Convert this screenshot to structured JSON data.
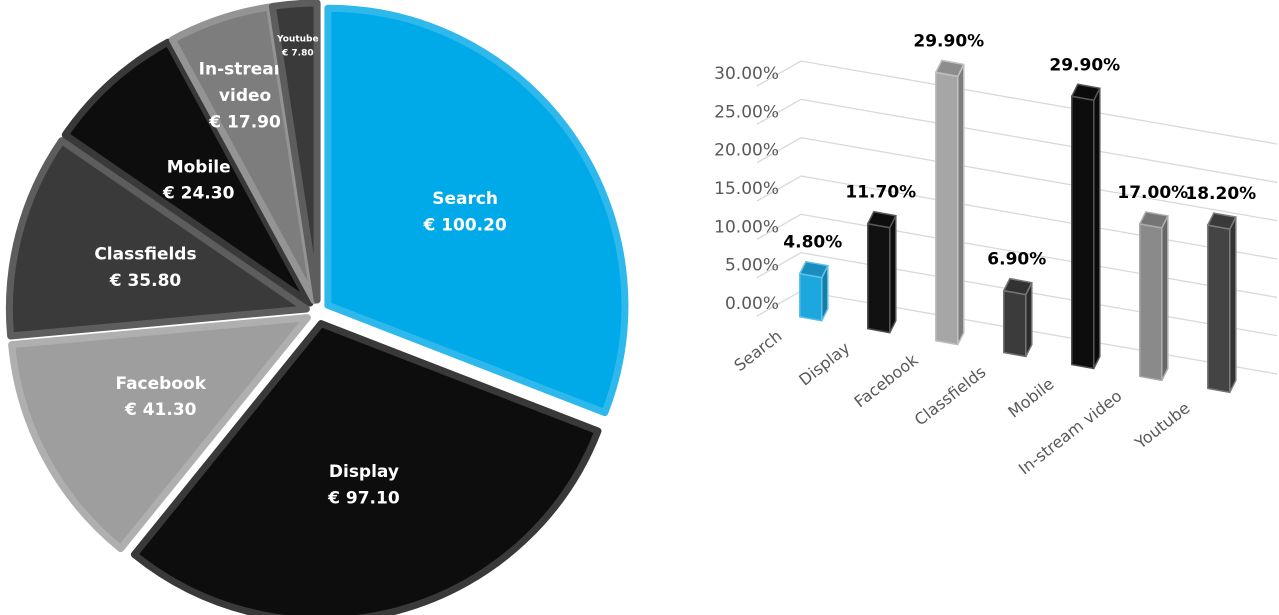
{
  "chart_data": [
    {
      "type": "pie",
      "slices": [
        {
          "name": "Search",
          "value": 100.2,
          "value_label": "€ 100.20",
          "color": "#00a9e8"
        },
        {
          "name": "Display",
          "value": 97.1,
          "value_label": "€ 97.10",
          "color": "#0d0d0d"
        },
        {
          "name": "Facebook",
          "value": 41.3,
          "value_label": "€ 41.30",
          "color": "#9e9e9e"
        },
        {
          "name": "Classfields",
          "value": 35.8,
          "value_label": "€ 35.80",
          "color": "#3a3a3a"
        },
        {
          "name": "Mobile",
          "value": 24.3,
          "value_label": "€ 24.30",
          "color": "#0d0d0d"
        },
        {
          "name": "In-stream video",
          "value": 17.9,
          "value_label": "€ 17.90",
          "color": "#7d7d7d"
        },
        {
          "name": "Youtube",
          "value": 7.8,
          "value_label": "€ 7.80",
          "color": "#3a3a3a"
        }
      ],
      "exploded": true
    },
    {
      "type": "bar",
      "style": "3d-column",
      "categories": [
        "Search",
        "Display",
        "Facebook",
        "Classfields",
        "Mobile",
        "In-stream video",
        "Youtube"
      ],
      "values": [
        4.8,
        11.7,
        29.9,
        6.9,
        29.9,
        17.0,
        18.2
      ],
      "value_labels": [
        "4.80%",
        "11.70%",
        "29.90%",
        "6.90%",
        "29.90%",
        "17.00%",
        "18.20%"
      ],
      "colors": [
        "#1da7df",
        "#111111",
        "#a6a6a6",
        "#3b3b3b",
        "#0d0d0d",
        "#8a8a8a",
        "#444444"
      ],
      "yticks": [
        "0.00%",
        "5.00%",
        "10.00%",
        "15.00%",
        "20.00%",
        "25.00%",
        "30.00%"
      ],
      "ylim": [
        0,
        30
      ],
      "grid": true,
      "legend": "none"
    }
  ]
}
